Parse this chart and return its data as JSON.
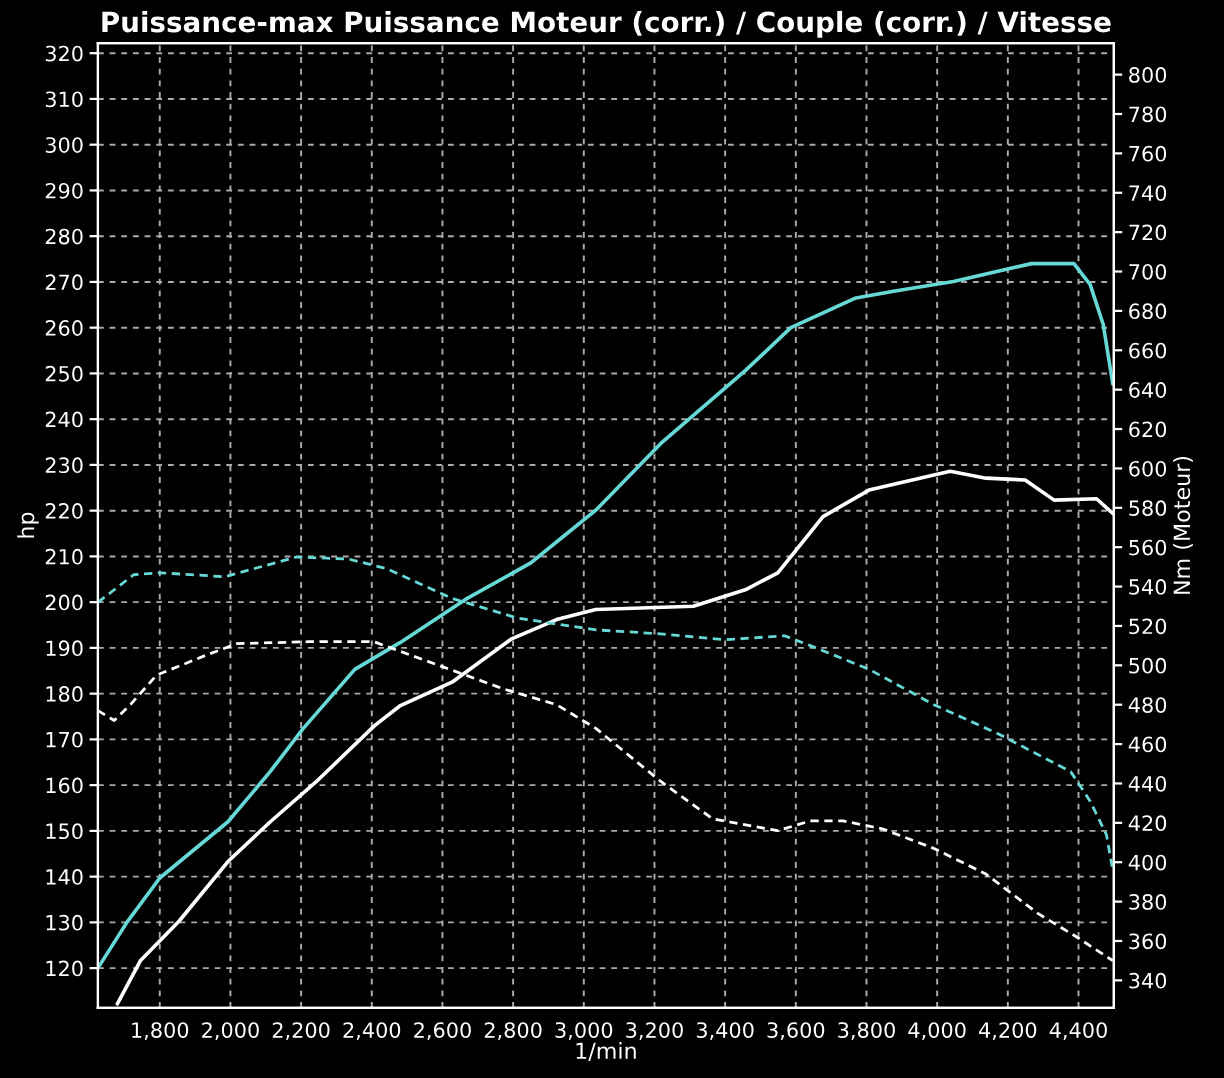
{
  "chart_data": {
    "type": "line",
    "title": "Puissance-max Puissance Moteur (corr.) / Couple (corr.) / Vitesse",
    "xlabel": "1/min",
    "ylabel": "hp",
    "y2label": "Nm (Moteur)",
    "xlim": [
      1625,
      4500
    ],
    "ylim": [
      111.3,
      322.2
    ],
    "y2lim": [
      326,
      816
    ],
    "xticks": [
      {
        "value": 1800,
        "label": "1,800"
      },
      {
        "value": 2000,
        "label": "2,000"
      },
      {
        "value": 2200,
        "label": "2,200"
      },
      {
        "value": 2400,
        "label": "2,400"
      },
      {
        "value": 2600,
        "label": "2,600"
      },
      {
        "value": 2800,
        "label": "2,800"
      },
      {
        "value": 3000,
        "label": "3,000"
      },
      {
        "value": 3200,
        "label": "3,200"
      },
      {
        "value": 3400,
        "label": "3,400"
      },
      {
        "value": 3600,
        "label": "3,600"
      },
      {
        "value": 3800,
        "label": "3,800"
      },
      {
        "value": 4000,
        "label": "4,000"
      },
      {
        "value": 4200,
        "label": "4,200"
      },
      {
        "value": 4400,
        "label": "4,400"
      }
    ],
    "yticks": [
      120,
      130,
      140,
      150,
      160,
      170,
      180,
      190,
      200,
      210,
      220,
      230,
      240,
      250,
      260,
      270,
      280,
      290,
      300,
      310,
      320
    ],
    "y2ticks": [
      340,
      360,
      380,
      400,
      420,
      440,
      460,
      480,
      500,
      520,
      540,
      560,
      580,
      600,
      620,
      640,
      660,
      680,
      700,
      720,
      740,
      760,
      780,
      800
    ],
    "grid": true,
    "legend": false,
    "marker": "none",
    "series": [
      {
        "color": "#66d9d6",
        "line_style": "solid",
        "x": [
          1625,
          1707,
          1800,
          1993,
          2113,
          2205,
          2352,
          2481,
          2665,
          2850,
          2941,
          3034,
          3218,
          3457,
          3586,
          3770,
          3881,
          4046,
          4267,
          4387,
          4433,
          4470,
          4497
        ],
        "values": [
          120,
          130,
          139.7,
          152,
          163,
          172.3,
          185.3,
          191.2,
          200.6,
          208.6,
          214.3,
          220.1,
          234.7,
          250.6,
          260,
          266.5,
          268,
          270.1,
          274,
          274,
          269.4,
          260.7,
          247.7
        ]
      },
      {
        "color": "#ffffff",
        "line_style": "solid",
        "x": [
          1680,
          1745,
          1855,
          1993,
          2113,
          2242,
          2408,
          2481,
          2627,
          2794,
          2923,
          3034,
          3310,
          3457,
          3549,
          3677,
          3807,
          4037,
          4138,
          4249,
          4331,
          4451,
          4497
        ],
        "values": [
          112.2,
          121.6,
          130.3,
          143.3,
          152,
          160.7,
          173,
          177.4,
          182.5,
          191.9,
          196.2,
          198.4,
          199.1,
          202.7,
          206.4,
          218.7,
          224.5,
          228.6,
          227.1,
          226.7,
          222.3,
          222.6,
          219.4
        ]
      },
      {
        "color": "#66d9d6",
        "line_style": "dashed",
        "axis": "y2",
        "x": [
          1625,
          1726,
          1800,
          1984,
          2187,
          2334,
          2444,
          2627,
          2812,
          3034,
          3218,
          3402,
          3568,
          3641,
          3807,
          3991,
          4175,
          4378,
          4433,
          4479,
          4497
        ],
        "values": [
          532,
          546,
          547,
          545,
          555,
          554,
          549,
          534,
          524,
          518,
          516,
          513,
          515,
          510,
          498,
          480,
          465,
          446,
          431,
          414,
          396
        ]
      },
      {
        "color": "#ffffff",
        "line_style": "dashed",
        "axis": "y2",
        "x": [
          1625,
          1671,
          1717,
          1791,
          1929,
          2018,
          2221,
          2406,
          2589,
          2773,
          2923,
          3034,
          3218,
          3365,
          3549,
          3641,
          3733,
          3844,
          3991,
          4138,
          4285,
          4395,
          4497
        ],
        "values": [
          477,
          472,
          480,
          495,
          505,
          511,
          512,
          512,
          500,
          488,
          480,
          468,
          441,
          422,
          416,
          421,
          421,
          417,
          407,
          394,
          374,
          362,
          350
        ]
      }
    ]
  }
}
